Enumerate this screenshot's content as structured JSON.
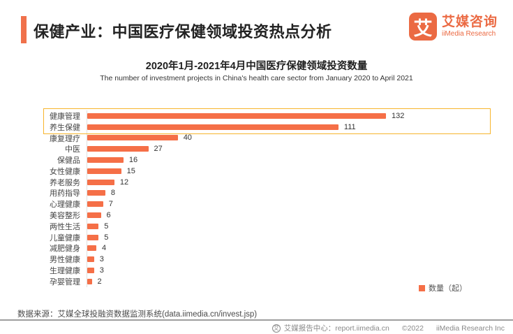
{
  "header": {
    "title": "保健产业：中国医疗保健领域投资热点分析",
    "accent_color": "#F0714B",
    "logo": {
      "mark_text": "艾",
      "name_cn": "艾媒咨询",
      "name_en": "iiMedia Research",
      "color": "#EB6A43"
    }
  },
  "chart": {
    "title": "2020年1月-2021年4月中国医疗保健领域投资数量",
    "subtitle": "The number of investment projects in China's health care sector from January 2020 to April 2021",
    "legend_label": "数量（起）",
    "bar_color": "#F56F47",
    "highlight_border_color": "#F7B52C"
  },
  "chart_data": {
    "type": "bar",
    "orientation": "horizontal",
    "title": "2020年1月-2021年4月中国医疗保健领域投资数量",
    "subtitle": "The number of investment projects in China's health care sector from January 2020 to April 2021",
    "categories": [
      "健康管理",
      "养生保健",
      "康复理疗",
      "中医",
      "保健品",
      "女性健康",
      "养老服务",
      "用药指导",
      "心理健康",
      "美容整形",
      "两性生活",
      "儿童健康",
      "减肥健身",
      "男性健康",
      "生理健康",
      "孕婴管理"
    ],
    "values": [
      132,
      111,
      40,
      27,
      16,
      15,
      12,
      8,
      7,
      6,
      5,
      5,
      4,
      3,
      3,
      2
    ],
    "highlighted_categories": [
      "健康管理",
      "养生保健"
    ],
    "legend": [
      "数量（起）"
    ],
    "xlim": [
      0,
      140
    ],
    "grid": false,
    "legend_position": "bottom-right"
  },
  "source": {
    "text": "数据来源：艾媒全球投融资数据监测系统(data.iimedia.cn/invest.jsp)"
  },
  "footer": {
    "icon_text": "艾",
    "center_label": "艾媒报告中心：report.iimedia.cn",
    "copyright": "©2022",
    "company": "iiMedia Research  Inc"
  }
}
